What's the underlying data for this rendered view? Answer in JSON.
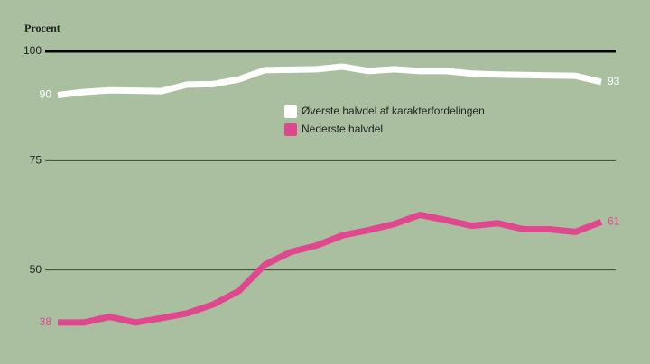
{
  "chart_data": {
    "type": "line",
    "y_label": "Procent",
    "x": [
      null,
      null,
      null,
      null,
      null,
      null,
      null,
      null,
      null,
      null,
      null,
      null,
      null,
      null,
      null,
      null,
      null,
      null,
      null,
      null,
      null,
      null
    ],
    "series": [
      {
        "name": "Øverste halvdel af karakterfordelingen",
        "color": "#ffffff",
        "values": [
          90,
          90.7,
          91.1,
          91.0,
          90.9,
          92.4,
          92.5,
          93.6,
          95.7,
          95.8,
          95.9,
          96.5,
          95.5,
          95.9,
          95.5,
          95.5,
          94.9,
          94.7,
          94.6,
          94.5,
          94.4,
          93
        ]
      },
      {
        "name": "Nederste halvdel",
        "color": "#e0478e",
        "values": [
          38,
          38.0,
          39.3,
          38.0,
          39.0,
          40.1,
          42.1,
          45.2,
          51.2,
          54.1,
          55.6,
          57.9,
          59.1,
          60.5,
          62.6,
          61.4,
          60.1,
          60.7,
          59.3,
          59.3,
          58.7,
          61
        ]
      }
    ],
    "ylim": [
      28.5,
      100
    ],
    "yticks": [
      50,
      75,
      100
    ],
    "grid": true
  }
}
